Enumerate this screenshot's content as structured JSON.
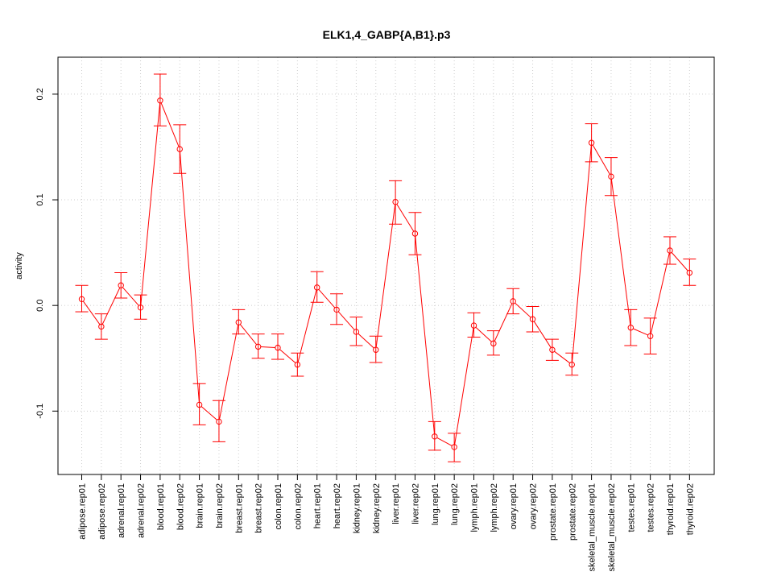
{
  "chart_data": {
    "type": "line",
    "title": "ELK1,4_GABP{A,B1}.p3",
    "xlabel": "",
    "ylabel": "activity",
    "ylim": [
      -0.16,
      0.235
    ],
    "yticks": [
      -0.1,
      0.0,
      0.1,
      0.2
    ],
    "ytick_labels": [
      "-0.1",
      "0.0",
      "0.1",
      "0.2"
    ],
    "grid": true,
    "line_color": "#ff0000",
    "categories": [
      "adipose.rep01",
      "adipose.rep02",
      "adrenal.rep01",
      "adrenal.rep02",
      "blood.rep01",
      "blood.rep02",
      "brain.rep01",
      "brain.rep02",
      "breast.rep01",
      "breast.rep02",
      "colon.rep01",
      "colon.rep02",
      "heart.rep01",
      "heart.rep02",
      "kidney.rep01",
      "kidney.rep02",
      "liver.rep01",
      "liver.rep02",
      "lung.rep01",
      "lung.rep02",
      "lymph.rep01",
      "lymph.rep02",
      "ovary.rep01",
      "ovary.rep02",
      "prostate.rep01",
      "prostate.rep02",
      "skeletal_muscle.rep01",
      "skeletal_muscle.rep02",
      "testes.rep01",
      "testes.rep02",
      "thyroid.rep01",
      "thyroid.rep02"
    ],
    "values": [
      0.006,
      -0.02,
      0.019,
      -0.002,
      0.194,
      0.148,
      -0.094,
      -0.11,
      -0.016,
      -0.039,
      -0.04,
      -0.056,
      0.017,
      -0.004,
      -0.025,
      -0.042,
      0.098,
      0.068,
      -0.124,
      -0.134,
      -0.019,
      -0.036,
      0.004,
      -0.013,
      -0.042,
      -0.056,
      0.154,
      0.122,
      -0.021,
      -0.029,
      0.052,
      0.031
    ],
    "err_upper": [
      0.019,
      -0.008,
      0.031,
      0.01,
      0.219,
      0.171,
      -0.074,
      -0.09,
      -0.004,
      -0.027,
      -0.027,
      -0.045,
      0.032,
      0.011,
      -0.011,
      -0.029,
      0.118,
      0.088,
      -0.11,
      -0.121,
      -0.007,
      -0.024,
      0.016,
      -0.001,
      -0.032,
      -0.045,
      0.172,
      0.14,
      -0.004,
      -0.012,
      0.065,
      0.044
    ],
    "err_lower": [
      -0.006,
      -0.032,
      0.007,
      -0.013,
      0.17,
      0.125,
      -0.113,
      -0.129,
      -0.027,
      -0.05,
      -0.051,
      -0.067,
      0.003,
      -0.018,
      -0.038,
      -0.054,
      0.077,
      0.048,
      -0.137,
      -0.148,
      -0.03,
      -0.047,
      -0.008,
      -0.025,
      -0.052,
      -0.066,
      0.136,
      0.104,
      -0.038,
      -0.046,
      0.039,
      0.019
    ]
  }
}
